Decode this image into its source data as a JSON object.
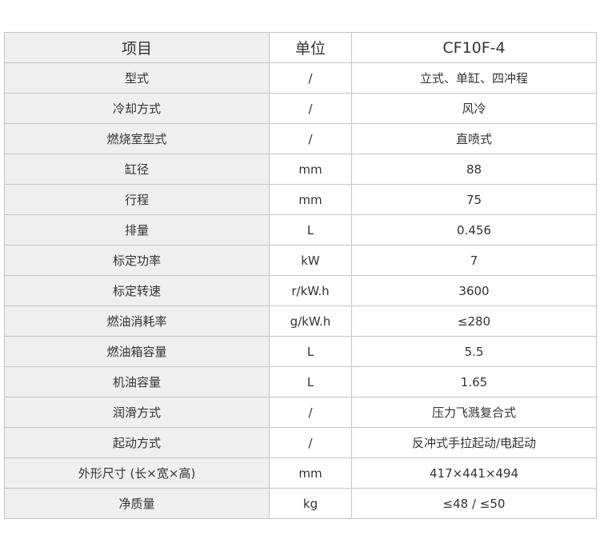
{
  "header": {
    "item": "项目",
    "unit": "单位",
    "model": "CF10F-4"
  },
  "rows": [
    {
      "item": "型式",
      "unit": "/",
      "value": "立式、单缸、四冲程"
    },
    {
      "item": "冷却方式",
      "unit": "/",
      "value": "风冷"
    },
    {
      "item": "燃烧室型式",
      "unit": "/",
      "value": "直喷式"
    },
    {
      "item": "缸径",
      "unit": "mm",
      "value": "88"
    },
    {
      "item": "行程",
      "unit": "mm",
      "value": "75"
    },
    {
      "item": "排量",
      "unit": "L",
      "value": "0.456"
    },
    {
      "item": "标定功率",
      "unit": "kW",
      "value": "7"
    },
    {
      "item": "标定转速",
      "unit": "r/kW.h",
      "value": "3600"
    },
    {
      "item": "燃油消耗率",
      "unit": "g/kW.h",
      "value": "≤280"
    },
    {
      "item": "燃油箱容量",
      "unit": "L",
      "value": "5.5"
    },
    {
      "item": "机油容量",
      "unit": "L",
      "value": "1.65"
    },
    {
      "item": "润滑方式",
      "unit": "/",
      "value": "压力飞溅复合式"
    },
    {
      "item": "起动方式",
      "unit": "/",
      "value": "反冲式手拉起动/电起动"
    },
    {
      "item": "外形尺寸 (长×宽×高)",
      "unit": "mm",
      "value": "417×441×494"
    },
    {
      "item": "净质量",
      "unit": "kg",
      "value": "≤48 / ≤50"
    }
  ]
}
